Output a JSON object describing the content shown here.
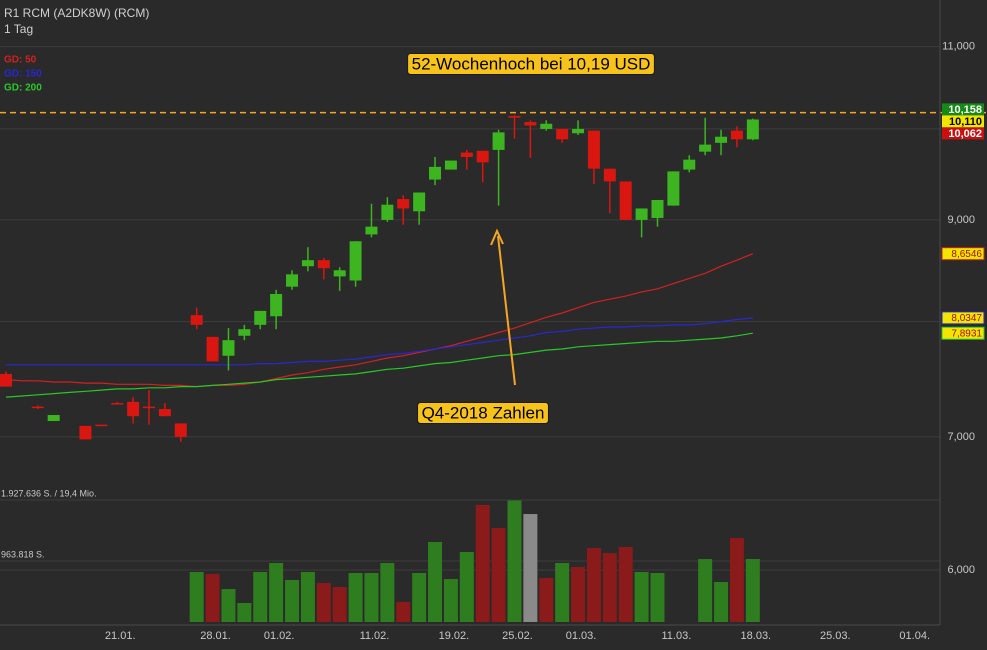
{
  "chart_data": {
    "type": "candlestick",
    "title": "R1 RCM (A2DK8W) (RCM)",
    "subtitle": "1 Tag",
    "categories": [
      null,
      null,
      null,
      null,
      null,
      null,
      null,
      "21.01.",
      null,
      null,
      null,
      null,
      null,
      "28.01.",
      null,
      null,
      null,
      "01.02.",
      null,
      null,
      null,
      null,
      null,
      "11.02.",
      null,
      null,
      null,
      null,
      "19.02.",
      null,
      null,
      null,
      "25.02.",
      null,
      null,
      null,
      "01.03.",
      null,
      null,
      null,
      null,
      null,
      "11.03.",
      null,
      null,
      null,
      null,
      "18.03.",
      null,
      null,
      null,
      null,
      "25.03.",
      null,
      null,
      null,
      null,
      "01.04."
    ],
    "open": [
      7.53,
      null,
      7.25,
      7.13,
      null,
      7.09,
      7.1,
      7.28,
      7.29,
      7.25,
      7.23,
      7.11,
      8.06,
      7.86,
      7.69,
      7.87,
      7.97,
      8.05,
      8.33,
      8.53,
      8.59,
      8.43,
      8.39,
      8.85,
      9.0,
      9.22,
      9.09,
      9.43,
      9.54,
      9.73,
      9.75,
      9.76,
      10.15,
      10.08,
      10.0,
      10.0,
      9.95,
      9.98,
      9.55,
      9.41,
      9.0,
      9.02,
      9.15,
      9.54,
      9.74,
      9.84,
      9.98,
      9.88,
      null,
      null,
      null,
      null,
      null,
      null,
      null,
      null,
      null,
      null
    ],
    "high": [
      7.55,
      null,
      7.26,
      7.18,
      null,
      7.09,
      7.1,
      7.29,
      7.33,
      7.39,
      7.28,
      7.11,
      8.13,
      7.86,
      7.94,
      7.97,
      8.1,
      8.3,
      8.49,
      8.72,
      8.61,
      8.52,
      8.78,
      9.17,
      9.24,
      9.26,
      9.29,
      9.68,
      9.64,
      9.76,
      9.75,
      9.99,
      10.16,
      10.1,
      10.1,
      10.0,
      10.1,
      9.98,
      9.55,
      9.41,
      9.12,
      9.21,
      9.52,
      9.7,
      10.13,
      9.99,
      10.03,
      10.12,
      null,
      null,
      null,
      null,
      null,
      null,
      null,
      null,
      null,
      null
    ],
    "low": [
      7.42,
      null,
      7.23,
      7.13,
      null,
      6.98,
      7.09,
      7.27,
      7.11,
      7.1,
      7.17,
      6.96,
      7.93,
      7.64,
      7.56,
      7.83,
      7.93,
      7.93,
      8.3,
      8.48,
      8.4,
      8.29,
      8.33,
      8.82,
      8.98,
      8.95,
      8.95,
      9.37,
      9.54,
      9.54,
      9.4,
      9.15,
      9.89,
      9.67,
      9.98,
      9.84,
      9.93,
      9.38,
      9.07,
      9.0,
      8.82,
      8.93,
      9.15,
      9.51,
      9.7,
      9.7,
      9.79,
      9.87,
      null,
      null,
      null,
      null,
      null,
      null,
      null,
      null,
      null,
      null
    ],
    "close": [
      7.42,
      null,
      7.24,
      7.18,
      null,
      6.98,
      7.09,
      7.27,
      7.17,
      7.24,
      7.17,
      7.0,
      7.97,
      7.64,
      7.83,
      7.93,
      8.1,
      8.26,
      8.45,
      8.59,
      8.51,
      8.49,
      8.78,
      8.93,
      9.16,
      9.12,
      9.29,
      9.57,
      9.64,
      9.68,
      9.62,
      9.96,
      10.13,
      10.04,
      10.06,
      9.88,
      10.0,
      9.55,
      9.41,
      9.0,
      9.12,
      9.21,
      9.52,
      9.65,
      9.82,
      9.91,
      9.88,
      10.11,
      null,
      null,
      null,
      null,
      null,
      null,
      null,
      null,
      null,
      null
    ],
    "up_color": "#3cb521",
    "down_color": "#d9160f",
    "series": [
      {
        "name": "GD: 50",
        "color": "#d42020",
        "values": [
          7.48,
          7.47,
          7.47,
          7.46,
          7.46,
          7.45,
          7.45,
          7.44,
          7.44,
          7.44,
          7.43,
          7.43,
          7.42,
          7.43,
          7.43,
          7.44,
          7.46,
          7.49,
          7.52,
          7.54,
          7.57,
          7.59,
          7.61,
          7.64,
          7.67,
          7.69,
          7.72,
          7.75,
          7.78,
          7.82,
          7.86,
          7.9,
          7.94,
          7.99,
          8.04,
          8.08,
          8.13,
          8.18,
          8.21,
          8.24,
          8.28,
          8.31,
          8.36,
          8.41,
          8.46,
          8.53,
          8.59,
          8.6546,
          null,
          null,
          null,
          null,
          null,
          null,
          null,
          null,
          null,
          null
        ],
        "value_labels": [
          null,
          null,
          null,
          null,
          null,
          null,
          null,
          null,
          null,
          null,
          null,
          null,
          null,
          null,
          null,
          null,
          null,
          null,
          null,
          null,
          null,
          null,
          null,
          null,
          null,
          null,
          null,
          null,
          null,
          null,
          null,
          null,
          null,
          null,
          null,
          null,
          null,
          null,
          null,
          null,
          null,
          null,
          null,
          null,
          null,
          null,
          null,
          "8,6546",
          null,
          null,
          null,
          null,
          null,
          null,
          null,
          null,
          null,
          null
        ]
      },
      {
        "name": "GD: 150",
        "color": "#2828d0",
        "values": [
          7.61,
          7.61,
          7.61,
          7.61,
          7.61,
          7.61,
          7.61,
          7.61,
          7.61,
          7.61,
          7.61,
          7.61,
          7.61,
          7.61,
          7.61,
          7.61,
          7.62,
          7.62,
          7.63,
          7.64,
          7.64,
          7.65,
          7.66,
          7.68,
          7.7,
          7.71,
          7.73,
          7.75,
          7.77,
          7.79,
          7.81,
          7.83,
          7.85,
          7.87,
          7.9,
          7.91,
          7.93,
          7.94,
          7.95,
          7.95,
          7.96,
          7.96,
          7.97,
          7.97,
          7.98,
          8.0,
          8.02,
          8.0347,
          null,
          null,
          null,
          null,
          null,
          null,
          null,
          null,
          null,
          null
        ],
        "value_labels": [
          null,
          null,
          null,
          null,
          null,
          null,
          null,
          null,
          null,
          null,
          null,
          null,
          null,
          null,
          null,
          null,
          null,
          null,
          null,
          null,
          null,
          null,
          null,
          null,
          null,
          null,
          null,
          null,
          null,
          null,
          null,
          null,
          null,
          null,
          null,
          null,
          null,
          null,
          null,
          null,
          null,
          null,
          null,
          null,
          null,
          null,
          null,
          "8,0347",
          null,
          null,
          null,
          null,
          null,
          null,
          null,
          null,
          null,
          null
        ]
      },
      {
        "name": "GD: 200",
        "color": "#28c828",
        "values": [
          7.33,
          7.34,
          7.35,
          7.36,
          7.37,
          7.38,
          7.39,
          7.4,
          7.4,
          7.41,
          7.41,
          7.42,
          7.42,
          7.43,
          7.44,
          7.45,
          7.46,
          7.48,
          7.49,
          7.5,
          7.51,
          7.52,
          7.53,
          7.55,
          7.57,
          7.58,
          7.6,
          7.62,
          7.63,
          7.65,
          7.67,
          7.69,
          7.7,
          7.72,
          7.74,
          7.75,
          7.77,
          7.78,
          7.79,
          7.8,
          7.81,
          7.82,
          7.82,
          7.83,
          7.84,
          7.85,
          7.87,
          7.8931,
          null,
          null,
          null,
          null,
          null,
          null,
          null,
          null,
          null,
          null
        ],
        "value_labels": [
          null,
          null,
          null,
          null,
          null,
          null,
          null,
          null,
          null,
          null,
          null,
          null,
          null,
          null,
          null,
          null,
          null,
          null,
          null,
          null,
          null,
          null,
          null,
          null,
          null,
          null,
          null,
          null,
          null,
          null,
          null,
          null,
          null,
          null,
          null,
          null,
          null,
          null,
          null,
          null,
          null,
          null,
          null,
          null,
          null,
          null,
          null,
          "7,8931",
          null,
          null,
          null,
          null,
          null,
          null,
          null,
          null,
          null,
          null
        ]
      }
    ],
    "ylog": true,
    "ylim": [
      5.63,
      11.61
    ],
    "yticks": [
      {
        "value": 11,
        "label": "11,000"
      },
      {
        "value": 10,
        "label": null
      },
      {
        "value": 9,
        "label": "9,000"
      },
      {
        "value": 8,
        "label": null
      },
      {
        "value": 7,
        "label": "7,000"
      },
      {
        "value": 6,
        "label": "6,000"
      }
    ],
    "volume": {
      "values": [
        null,
        null,
        null,
        null,
        null,
        null,
        null,
        null,
        null,
        null,
        null,
        null,
        790000,
        758000,
        521000,
        300000,
        790000,
        932000,
        664000,
        790000,
        616000,
        553000,
        774000,
        774000,
        932000,
        316000,
        774000,
        1264000,
        679000,
        1106000,
        1849000,
        1485000,
        1920000,
        1706000,
        695000,
        932000,
        869000,
        1169000,
        1090000,
        1185000,
        790000,
        774000,
        null,
        null,
        995000,
        632000,
        1327000,
        995000,
        null,
        null,
        null,
        null,
        null,
        null,
        null,
        null,
        null,
        null
      ],
      "colors": [
        null,
        null,
        null,
        null,
        null,
        null,
        null,
        null,
        null,
        null,
        null,
        null,
        "#2e7d1f",
        "#8b1a1a",
        "#2e7d1f",
        "#2e7d1f",
        "#2e7d1f",
        "#2e7d1f",
        "#2e7d1f",
        "#2e7d1f",
        "#8b1a1a",
        "#8b1a1a",
        "#2e7d1f",
        "#2e7d1f",
        "#2e7d1f",
        "#8b1a1a",
        "#2e7d1f",
        "#2e7d1f",
        "#2e7d1f",
        "#2e7d1f",
        "#8b1a1a",
        "#8b1a1a",
        "#2e7d1f",
        "#8a8a8a",
        "#8b1a1a",
        "#2e7d1f",
        "#8b1a1a",
        "#8b1a1a",
        "#8b1a1a",
        "#8b1a1a",
        "#2e7d1f",
        "#2e7d1f",
        null,
        null,
        "#2e7d1f",
        "#2e7d1f",
        "#8b1a1a",
        "#2e7d1f",
        null,
        null,
        null,
        null,
        null,
        null,
        null,
        null,
        null,
        null
      ],
      "vlim": [
        0,
        1927636
      ],
      "vticks": [
        {
          "value": 1927636,
          "label": "1.927.636 S. / 19,4 Mio."
        },
        {
          "value": 963818,
          "label": "963.818 S."
        }
      ]
    },
    "high_line": {
      "value": 10.19,
      "color": "#f5a623"
    },
    "price_tags": [
      {
        "value": 10.158,
        "label": "10,158",
        "color": "#168a16"
      },
      {
        "value": 10.11,
        "label": "10,110",
        "color": "#f2e600"
      },
      {
        "value": 10.062,
        "label": "10,062",
        "color": "#c81010"
      }
    ],
    "annotations": [
      "52-Wochenhoch bei 10,19 USD",
      "Q4-2018 Zahlen"
    ]
  }
}
